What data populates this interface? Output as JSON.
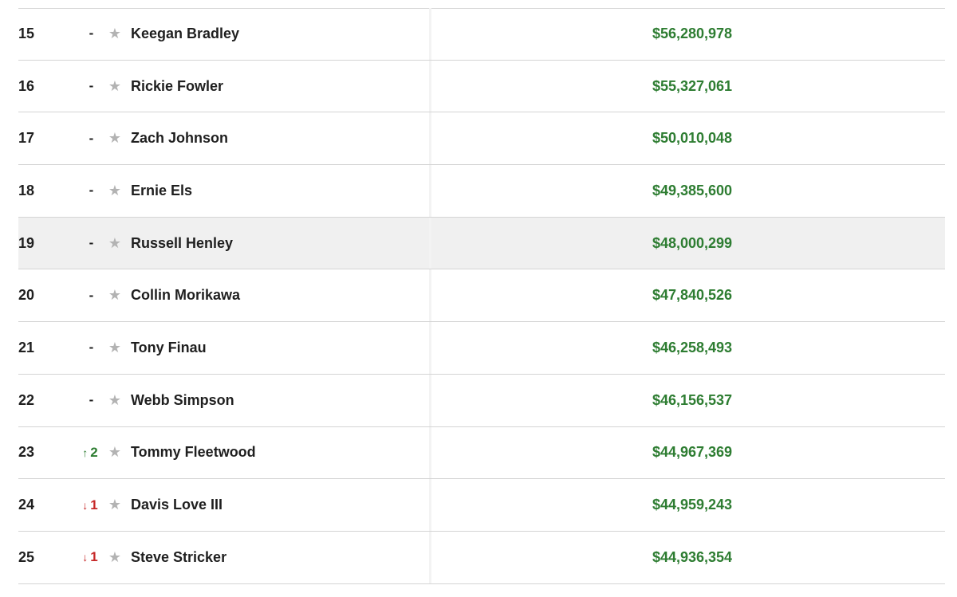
{
  "rows": [
    {
      "rank": "15",
      "move_dir": "none",
      "move_arrow": "",
      "move_text": "-",
      "name": "Keegan Bradley",
      "earnings": "$56,280,978"
    },
    {
      "rank": "16",
      "move_dir": "none",
      "move_arrow": "",
      "move_text": "-",
      "name": "Rickie Fowler",
      "earnings": "$55,327,061"
    },
    {
      "rank": "17",
      "move_dir": "none",
      "move_arrow": "",
      "move_text": "-",
      "name": "Zach Johnson",
      "earnings": "$50,010,048"
    },
    {
      "rank": "18",
      "move_dir": "none",
      "move_arrow": "",
      "move_text": "-",
      "name": "Ernie Els",
      "earnings": "$49,385,600"
    },
    {
      "rank": "19",
      "move_dir": "none",
      "move_arrow": "",
      "move_text": "-",
      "name": "Russell Henley",
      "earnings": "$48,000,299"
    },
    {
      "rank": "20",
      "move_dir": "none",
      "move_arrow": "",
      "move_text": "-",
      "name": "Collin Morikawa",
      "earnings": "$47,840,526"
    },
    {
      "rank": "21",
      "move_dir": "none",
      "move_arrow": "",
      "move_text": "-",
      "name": "Tony Finau",
      "earnings": "$46,258,493"
    },
    {
      "rank": "22",
      "move_dir": "none",
      "move_arrow": "",
      "move_text": "-",
      "name": "Webb Simpson",
      "earnings": "$46,156,537"
    },
    {
      "rank": "23",
      "move_dir": "up",
      "move_arrow": "↑",
      "move_text": "2",
      "name": "Tommy Fleetwood",
      "earnings": "$44,967,369"
    },
    {
      "rank": "24",
      "move_dir": "down",
      "move_arrow": "↓",
      "move_text": "1",
      "name": "Davis Love III",
      "earnings": "$44,959,243"
    },
    {
      "rank": "25",
      "move_dir": "down",
      "move_arrow": "↓",
      "move_text": "1",
      "name": "Steve Stricker",
      "earnings": "$44,936,354"
    }
  ],
  "highlighted_rank": "19",
  "icons": {
    "favorite": "star-icon"
  },
  "colors": {
    "earnings": "#2e7d32",
    "up": "#2e7d32",
    "down": "#c62828",
    "star": "#b3b3b3",
    "highlight_row": "#f0f0f0"
  }
}
